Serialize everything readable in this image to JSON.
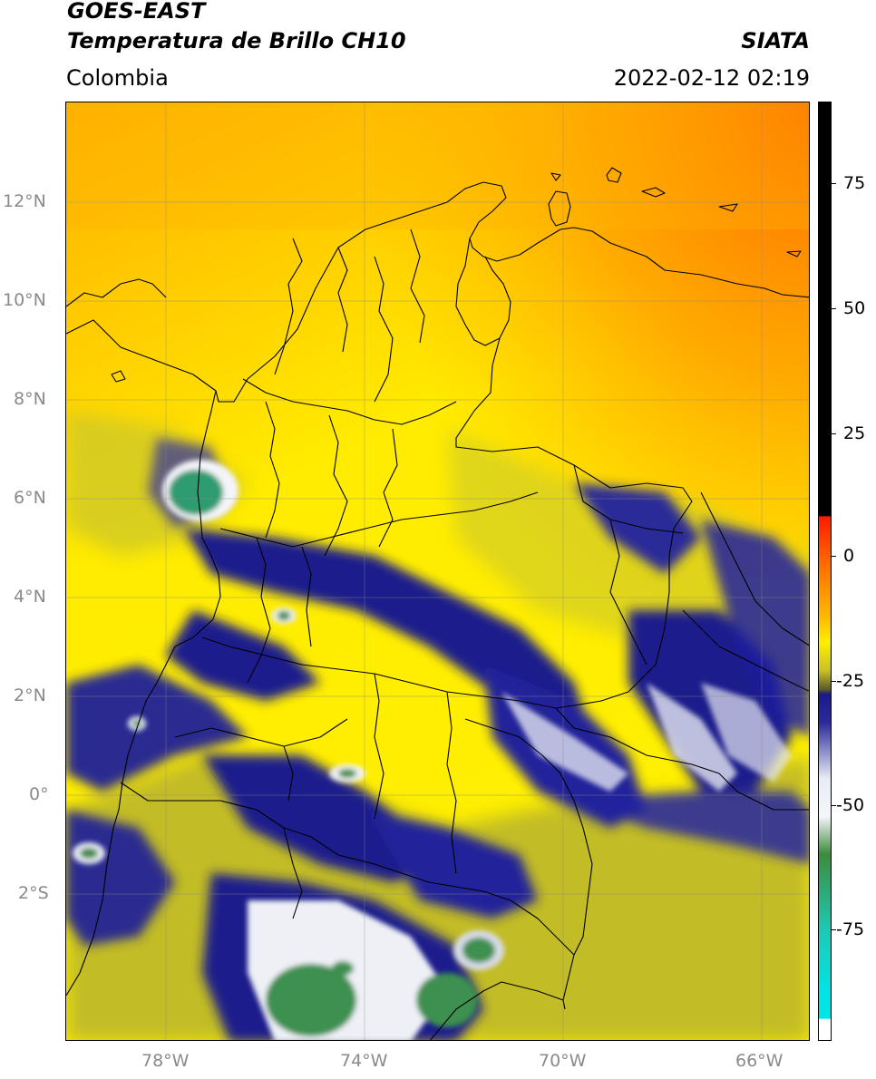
{
  "header": {
    "satellite": "GOES-EAST",
    "product": "Temperatura de Brillo CH10",
    "region": "Colombia",
    "agency": "SIATA",
    "datetime": "2022-02-12 02:19"
  },
  "axes": {
    "lat_labels": [
      "12°N",
      "10°N",
      "8°N",
      "6°N",
      "4°N",
      "2°N",
      "0°",
      "2°S"
    ],
    "lon_labels": [
      "78°W",
      "74°W",
      "70°W",
      "66°W"
    ]
  },
  "colorbar": {
    "labels": [
      "75",
      "50",
      "25",
      "0",
      "-25",
      "-50",
      "-75"
    ],
    "colors": {
      "black": "#000000",
      "red": "#ff1a00",
      "orange": "#ff9a00",
      "yellow": "#ffee00",
      "olive": "#b8b52a",
      "dark_olive": "#5a5a2a",
      "navy": "#1a1a8c",
      "light": "#e8ecf4",
      "green": "#3c8c3c",
      "teal": "#1ec8b4",
      "cyan": "#00e6e6"
    }
  }
}
